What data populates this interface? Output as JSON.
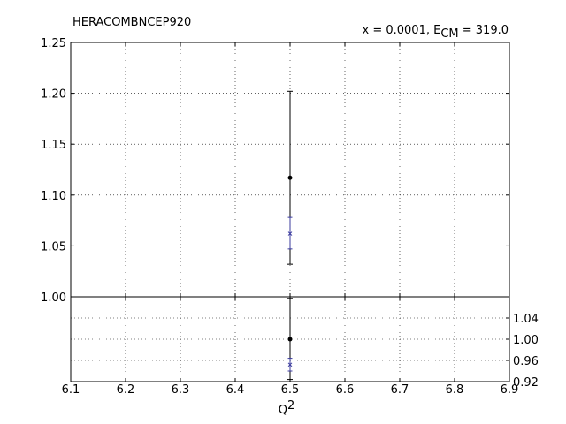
{
  "chart_data": {
    "type": "scatter",
    "title_left": "HERACOMBNCEP920",
    "title_right": {
      "prefix": "x = 0.0001, ",
      "var": "E",
      "sub": "CM",
      "suffix": " = 319.0"
    },
    "xlabel": {
      "var": "Q",
      "sup": "2"
    },
    "xlim": [
      6.1,
      6.9
    ],
    "x_ticks": [
      "6.1",
      "6.2",
      "6.3",
      "6.4",
      "6.5",
      "6.6",
      "6.7",
      "6.8",
      "6.9"
    ],
    "grid": true,
    "colors": {
      "data": "#000000",
      "theory": "#3b3b9e"
    },
    "top_panel": {
      "ylim": [
        1.0,
        1.25
      ],
      "y_ticks": [
        "1.00",
        "1.05",
        "1.10",
        "1.15",
        "1.20",
        "1.25"
      ],
      "series": [
        {
          "kind": "data",
          "points": [
            {
              "x": 6.5,
              "y": 1.117,
              "ylo": 1.032,
              "yhi": 1.202
            }
          ]
        },
        {
          "kind": "theory",
          "points": [
            {
              "x": 6.5,
              "y": 1.062,
              "ylo": 1.047,
              "yhi": 1.078
            }
          ]
        }
      ]
    },
    "bottom_panel": {
      "ylim": [
        0.92,
        1.08
      ],
      "y_ticks": [
        "0.92",
        "0.96",
        "1.00",
        "1.04"
      ],
      "series": [
        {
          "kind": "data",
          "points": [
            {
              "x": 6.5,
              "y": 1.0,
              "ylo": 1.077,
              "yhi": 0.924
            }
          ]
        },
        {
          "kind": "theory",
          "points": [
            {
              "x": 6.5,
              "y": 0.952,
              "ylo": 0.964,
              "yhi": 0.94
            }
          ]
        }
      ]
    }
  }
}
